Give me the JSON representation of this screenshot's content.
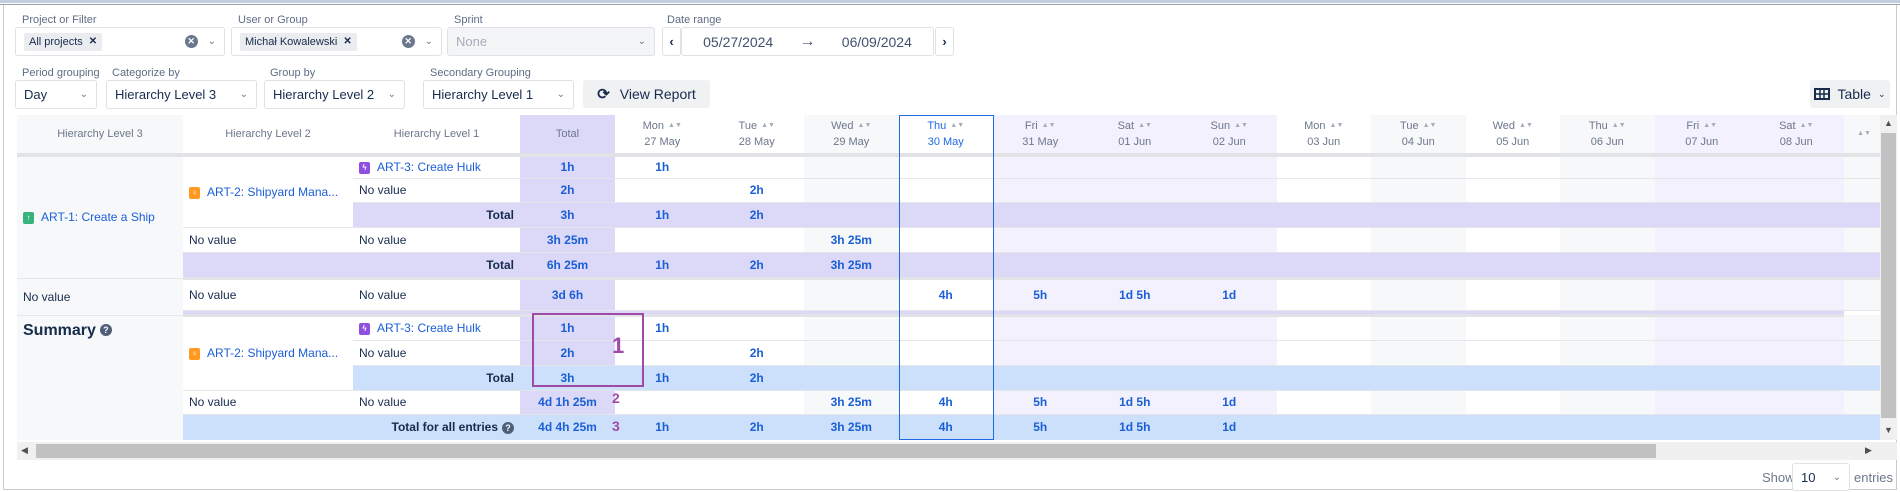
{
  "filters": {
    "project": {
      "label": "Project or Filter",
      "chip": "All projects"
    },
    "user": {
      "label": "User or Group",
      "chip": "Michał Kowalewski"
    },
    "sprint": {
      "label": "Sprint",
      "placeholder": "None"
    },
    "date_range": {
      "label": "Date range",
      "start": "05/27/2024",
      "end": "06/09/2024"
    },
    "period": {
      "label": "Period grouping",
      "value": "Day"
    },
    "categorize": {
      "label": "Categorize by",
      "value": "Hierarchy Level 3"
    },
    "group_by": {
      "label": "Group by",
      "value": "Hierarchy Level 2"
    },
    "secondary": {
      "label": "Secondary Grouping",
      "value": "Hierarchy Level 1"
    },
    "view_report": "View Report",
    "view_mode": "Table"
  },
  "colors": {
    "link": "#1a5fd6",
    "total_col": "#dcd8f8",
    "total_row": "#dcd8f8",
    "summary_total_row": "#cce0fc",
    "weekend": "#f3f1fd",
    "highlight": "#1d6ae5",
    "annotation": "#a04aa8"
  },
  "table": {
    "headers": [
      "Hierarchy Level 3",
      "Hierarchy Level 2",
      "Hierarchy Level 1",
      "Total"
    ],
    "days": [
      [
        "Mon",
        "27 May"
      ],
      [
        "Tue",
        "28 May"
      ],
      [
        "Wed",
        "29 May"
      ],
      [
        "Thu",
        "30 May"
      ],
      [
        "Fri",
        "31 May"
      ],
      [
        "Sat",
        "01 Jun"
      ],
      [
        "Sun",
        "02 Jun"
      ],
      [
        "Mon",
        "03 Jun"
      ],
      [
        "Tue",
        "04 Jun"
      ],
      [
        "Wed",
        "05 Jun"
      ],
      [
        "Thu",
        "06 Jun"
      ],
      [
        "Fri",
        "07 Jun"
      ],
      [
        "Sat",
        "08 Jun"
      ],
      [
        "",
        ""
      ]
    ],
    "highlighted_day": 3,
    "total_label": "Total",
    "no_value": "No value",
    "groups": [
      {
        "l3": {
          "text": "ART-1: Create a Ship",
          "icon": "story-icon"
        },
        "children": [
          {
            "l2": {
              "text": "ART-2: Shipyard Mana...",
              "icon": "idea-icon"
            },
            "rows": [
              {
                "l1": {
                  "text": "ART-3: Create Hulk",
                  "icon": "subtask-icon"
                },
                "total": "1h",
                "days": [
                  "1h",
                  "",
                  "",
                  "",
                  "",
                  "",
                  "",
                  "",
                  "",
                  "",
                  "",
                  "",
                  "",
                  ""
                ]
              },
              {
                "l1": {
                  "text": "No value"
                },
                "total": "2h",
                "days": [
                  "",
                  "2h",
                  "",
                  "",
                  "",
                  "",
                  "",
                  "",
                  "",
                  "",
                  "",
                  "",
                  "",
                  ""
                ]
              }
            ],
            "subtotal": {
              "total": "3h",
              "days": [
                "1h",
                "2h",
                "",
                "",
                "",
                "",
                "",
                "",
                "",
                "",
                "",
                "",
                "",
                ""
              ]
            }
          },
          {
            "l2": {
              "text": "No value"
            },
            "rows": [
              {
                "l1": {
                  "text": "No value"
                },
                "total": "3h 25m",
                "days": [
                  "",
                  "",
                  "3h 25m",
                  "",
                  "",
                  "",
                  "",
                  "",
                  "",
                  "",
                  "",
                  "",
                  "",
                  ""
                ]
              }
            ]
          }
        ],
        "total": {
          "total": "6h 25m",
          "days": [
            "1h",
            "2h",
            "3h 25m",
            "",
            "",
            "",
            "",
            "",
            "",
            "",
            "",
            "",
            "",
            ""
          ]
        }
      },
      {
        "l3": {
          "text": "No value"
        },
        "children": [
          {
            "l2": {
              "text": "No value"
            },
            "rows": [
              {
                "l1": {
                  "text": "No value"
                },
                "total": "3d 6h",
                "days": [
                  "",
                  "",
                  "",
                  "4h",
                  "5h",
                  "1d 5h",
                  "1d",
                  "",
                  "",
                  "",
                  "",
                  "",
                  "",
                  ""
                ]
              }
            ]
          }
        ],
        "band": true
      }
    ],
    "summary": {
      "label": "Summary",
      "children": [
        {
          "l2": {
            "text": "ART-2: Shipyard Mana...",
            "icon": "idea-icon"
          },
          "rows": [
            {
              "l1": {
                "text": "ART-3: Create Hulk",
                "icon": "subtask-icon"
              },
              "total": "1h",
              "days": [
                "1h",
                "",
                "",
                "",
                "",
                "",
                "",
                "",
                "",
                "",
                "",
                "",
                "",
                ""
              ]
            },
            {
              "l1": {
                "text": "No value"
              },
              "total": "2h",
              "days": [
                "",
                "2h",
                "",
                "",
                "",
                "",
                "",
                "",
                "",
                "",
                "",
                "",
                "",
                ""
              ]
            }
          ],
          "subtotal": {
            "total": "3h",
            "days": [
              "1h",
              "2h",
              "",
              "",
              "",
              "",
              "",
              "",
              "",
              "",
              "",
              "",
              "",
              ""
            ]
          }
        },
        {
          "l2": {
            "text": "No value"
          },
          "rows": [
            {
              "l1": {
                "text": "No value"
              },
              "total": "4d 1h 25m",
              "days": [
                "",
                "",
                "3h 25m",
                "4h",
                "5h",
                "1d 5h",
                "1d",
                "",
                "",
                "",
                "",
                "",
                "",
                ""
              ]
            }
          ]
        }
      ],
      "grand_total": {
        "label": "Total for all entries",
        "total": "4d 4h 25m",
        "days": [
          "1h",
          "2h",
          "3h 25m",
          "4h",
          "5h",
          "1d 5h",
          "1d",
          "",
          "",
          "",
          "",
          "",
          "",
          ""
        ]
      }
    }
  },
  "annotations": [
    "1",
    "2",
    "3"
  ],
  "footer": {
    "show": "Show",
    "page_size": "10",
    "entries": "entries"
  }
}
